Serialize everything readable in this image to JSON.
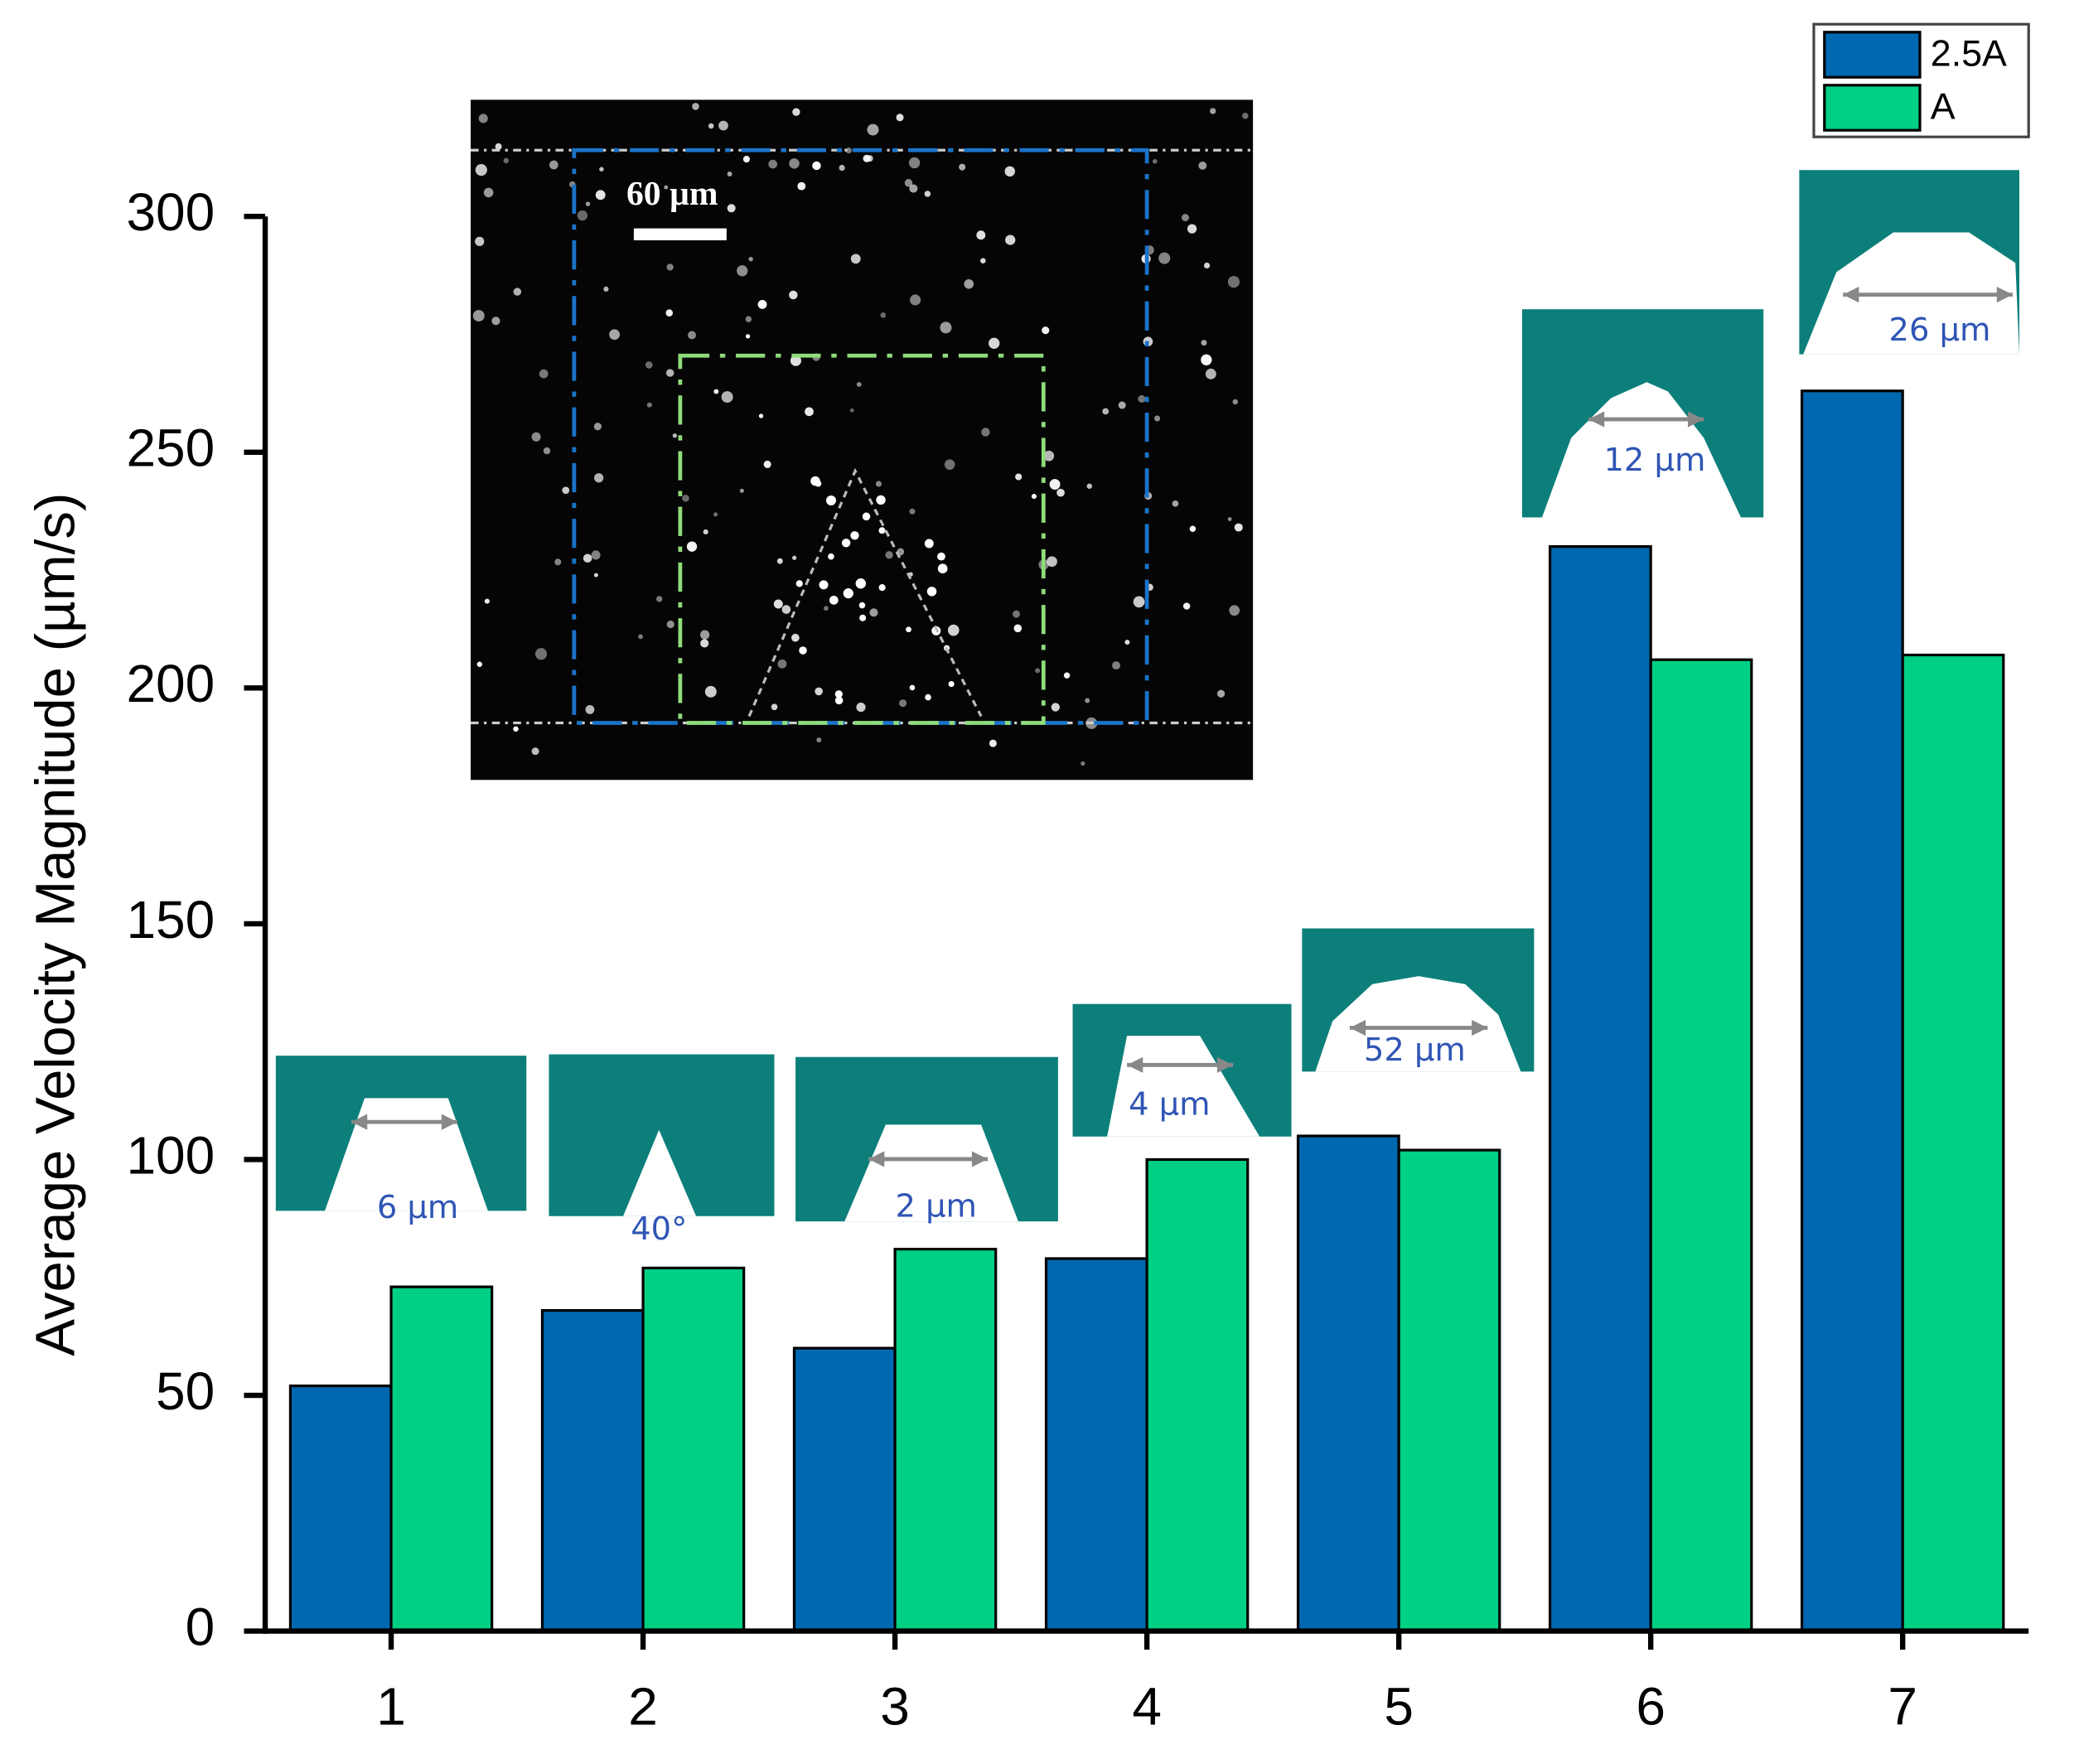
{
  "chart_data": {
    "type": "bar",
    "ylabel": "Average Velocity Magnitude (µm/s)",
    "categories": [
      "1",
      "2",
      "3",
      "4",
      "5",
      "6",
      "7"
    ],
    "series": [
      {
        "name": "2.5A",
        "color": "#0068b0",
        "values": [
          52,
          68,
          60,
          79,
          105,
          230,
          263
        ]
      },
      {
        "name": "A",
        "color": "#00d084",
        "values": [
          73,
          77,
          81,
          100,
          102,
          206,
          207
        ]
      }
    ],
    "ylim": [
      0,
      300
    ],
    "yticks": [
      0,
      50,
      100,
      150,
      200,
      250,
      300
    ],
    "legend": "top-right",
    "annotations": [
      "60 µm",
      "6 µm",
      "40°",
      "2 µm",
      "4 µm",
      "52 µm",
      "12 µm",
      "26 µm"
    ]
  }
}
